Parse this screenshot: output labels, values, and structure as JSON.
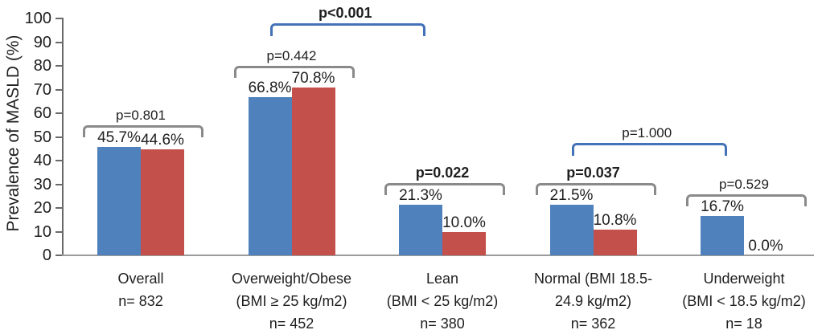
{
  "chart_data": {
    "type": "bar",
    "title": "",
    "ylabel": "Prevalence of MASLD (%)",
    "xlabel": "",
    "ylim": [
      0,
      100
    ],
    "ytick_step": 10,
    "grid": false,
    "legend": null,
    "categories": [
      {
        "lines": [
          "Overall",
          "n= 832"
        ]
      },
      {
        "lines": [
          "Overweight/Obese",
          "(BMI ≥ 25 kg/m2)",
          "n= 452"
        ]
      },
      {
        "lines": [
          "Lean",
          "(BMI < 25 kg/m2)",
          "n= 380"
        ]
      },
      {
        "lines": [
          "Normal (BMI 18.5-",
          "24.9 kg/m2)",
          "n= 362"
        ]
      },
      {
        "lines": [
          "Underweight",
          "(BMI < 18.5 kg/m2)",
          "n= 18"
        ]
      }
    ],
    "series": [
      {
        "name": "blue-series",
        "color": "#4f81bd",
        "values": [
          45.7,
          66.8,
          21.3,
          21.5,
          16.7
        ]
      },
      {
        "name": "red-series",
        "color": "#c4504c",
        "values": [
          44.6,
          70.8,
          10.0,
          10.8,
          0.0
        ]
      }
    ],
    "value_labels": [
      [
        "45.7%",
        "44.6%"
      ],
      [
        "66.8%",
        "70.8%"
      ],
      [
        "21.3%",
        "10.0%"
      ],
      [
        "21.5%",
        "10.8%"
      ],
      [
        "16.7%",
        "0.0%"
      ]
    ],
    "group_p_values": [
      {
        "label": "p=0.801",
        "bold": false
      },
      {
        "label": "p=0.442",
        "bold": false
      },
      {
        "label": "p=0.022",
        "bold": true
      },
      {
        "label": "p=0.037",
        "bold": true
      },
      {
        "label": "p=0.529",
        "bold": false
      }
    ],
    "comparison_brackets": [
      {
        "between_groups": [
          1,
          2
        ],
        "label": "p<0.001",
        "bold": true,
        "height_pct": 98
      },
      {
        "between_groups": [
          3,
          4
        ],
        "label": "p=1.000",
        "bold": false,
        "height_pct": 47.5
      }
    ],
    "colors": {
      "blue_bar": "#4f81bd",
      "red_bar": "#c4504c",
      "within_group_bracket": "#8a8a8a",
      "between_group_bracket": "#4472b8",
      "axis": "#696969",
      "baseline": "#9b9b9b",
      "text": "#1f1f1f"
    }
  }
}
